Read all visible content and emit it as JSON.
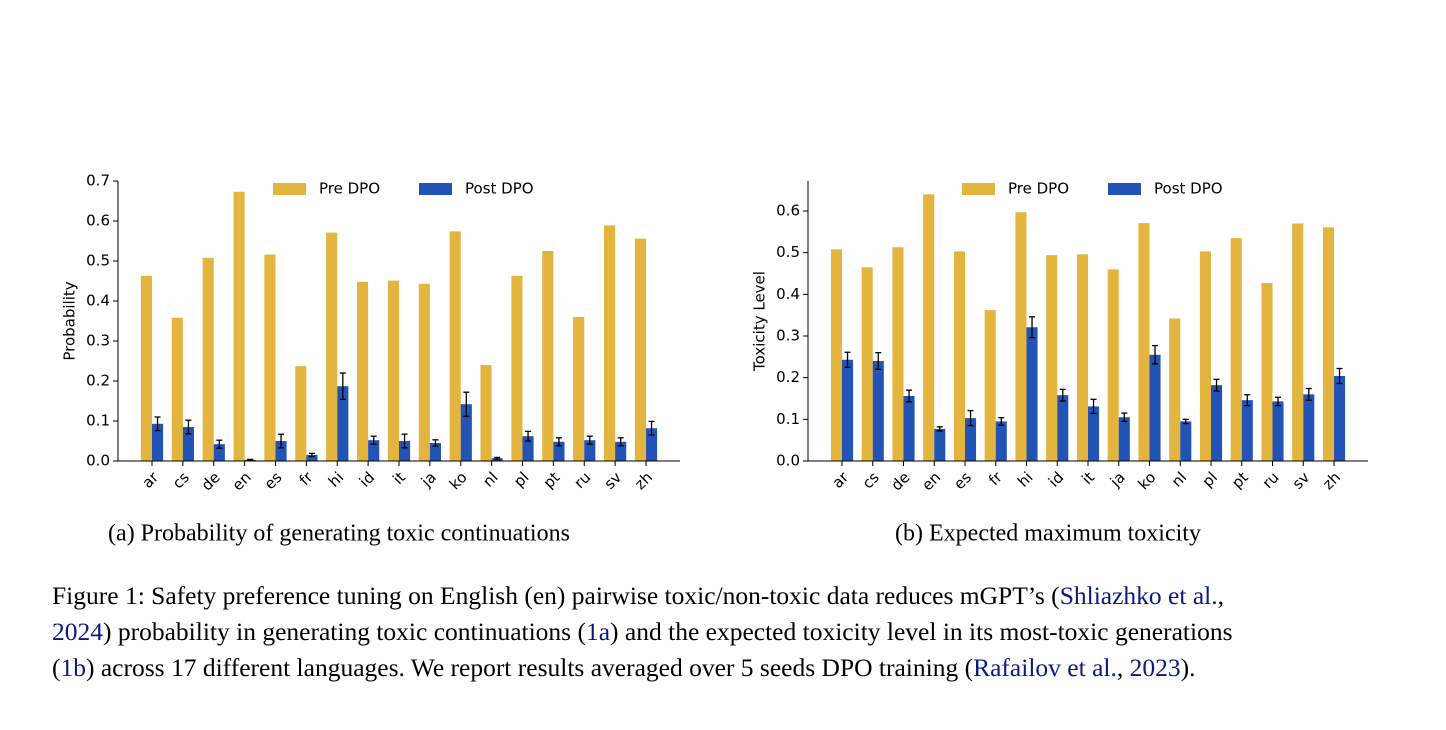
{
  "chart_data": [
    {
      "type": "bar",
      "caption": "(a) Probability of generating toxic continuations",
      "ylabel": "Probability",
      "categories": [
        "ar",
        "cs",
        "de",
        "en",
        "es",
        "fr",
        "hi",
        "id",
        "it",
        "ja",
        "ko",
        "nl",
        "pl",
        "pt",
        "ru",
        "sv",
        "zh"
      ],
      "series": [
        {
          "name": "Pre DPO",
          "color": "#e3b53e",
          "values": [
            0.463,
            0.358,
            0.508,
            0.673,
            0.516,
            0.237,
            0.571,
            0.448,
            0.451,
            0.443,
            0.574,
            0.24,
            0.463,
            0.525,
            0.36,
            0.589,
            0.556
          ]
        },
        {
          "name": "Post DPO",
          "color": "#2254b5",
          "values": [
            0.093,
            0.085,
            0.042,
            0.003,
            0.05,
            0.015,
            0.187,
            0.052,
            0.05,
            0.045,
            0.142,
            0.007,
            0.062,
            0.048,
            0.052,
            0.048,
            0.082
          ],
          "errors": [
            0.017,
            0.017,
            0.01,
            0.001,
            0.017,
            0.004,
            0.033,
            0.01,
            0.017,
            0.008,
            0.03,
            0.002,
            0.012,
            0.01,
            0.01,
            0.01,
            0.017
          ]
        }
      ],
      "ylim": [
        0,
        0.7
      ],
      "yticks": [
        {
          "value": 0,
          "label": "0.0"
        },
        0.1,
        0.2,
        0.3,
        0.4,
        0.5,
        0.6,
        0.7
      ],
      "legend": "upper center"
    },
    {
      "type": "bar",
      "caption": "(b) Expected maximum toxicity",
      "ylabel": "Toxicity Level",
      "categories": [
        "ar",
        "cs",
        "de",
        "en",
        "es",
        "fr",
        "hi",
        "id",
        "it",
        "ja",
        "ko",
        "nl",
        "pl",
        "pt",
        "ru",
        "sv",
        "zh"
      ],
      "series": [
        {
          "name": "Pre DPO",
          "color": "#e3b53e",
          "values": [
            0.508,
            0.465,
            0.513,
            0.64,
            0.503,
            0.362,
            0.597,
            0.494,
            0.496,
            0.46,
            0.571,
            0.342,
            0.503,
            0.535,
            0.427,
            0.57,
            0.561
          ]
        },
        {
          "name": "Post DPO",
          "color": "#2254b5",
          "values": [
            0.243,
            0.24,
            0.156,
            0.077,
            0.103,
            0.095,
            0.321,
            0.158,
            0.131,
            0.105,
            0.255,
            0.095,
            0.182,
            0.146,
            0.143,
            0.16,
            0.204
          ],
          "errors": [
            0.018,
            0.02,
            0.014,
            0.005,
            0.018,
            0.009,
            0.025,
            0.014,
            0.017,
            0.01,
            0.022,
            0.005,
            0.014,
            0.013,
            0.01,
            0.014,
            0.018
          ]
        }
      ],
      "ylim": [
        0,
        0.672
      ],
      "yticks": [
        {
          "value": 0,
          "label": "0.0"
        },
        0.1,
        0.2,
        0.3,
        0.4,
        0.5,
        0.6
      ],
      "legend": "upper center"
    }
  ],
  "figure_caption": [
    [
      {
        "text": "Figure 1: Safety preference tuning on English (en) pairwise toxic/non-toxic data reduces mGPT’s ("
      },
      {
        "text": "Shliazhko et al.",
        "link": true
      },
      {
        "text": ","
      }
    ],
    [
      {
        "text": "2024",
        "link": true
      },
      {
        "text": ") probability in generating toxic continuations ("
      },
      {
        "text": "1a",
        "link": true
      },
      {
        "text": ") and the expected toxicity level in its most-toxic generations"
      }
    ],
    [
      {
        "text": "("
      },
      {
        "text": "1b",
        "link": true
      },
      {
        "text": ") across 17 different languages. We report results averaged over 5 seeds DPO training ("
      },
      {
        "text": "Rafailov et al.",
        "link": true
      },
      {
        "text": ", "
      },
      {
        "text": "2023",
        "link": true
      },
      {
        "text": ")."
      }
    ]
  ]
}
